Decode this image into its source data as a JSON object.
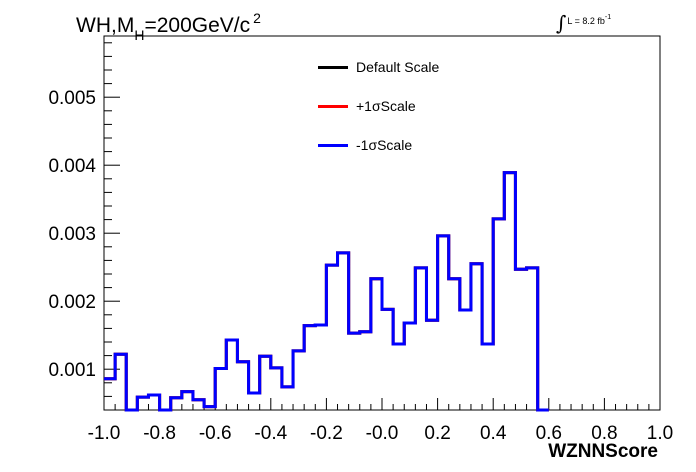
{
  "chart_data": {
    "type": "histogram",
    "title_parts": {
      "pre": "WH,M",
      "sub": "H",
      "post": "=200GeV/c",
      "sup": "2"
    },
    "lumi": {
      "text": "L = 8.2 fb",
      "sup": "-1"
    },
    "xlabel": "WZNNScore",
    "ylabel": "",
    "xlim": [
      -1.0,
      1.0
    ],
    "ylim": [
      0.0004,
      0.0059
    ],
    "xticks": [
      "-1.0",
      "-0.8",
      "-0.6",
      "-0.4",
      "-0.2",
      "-0.0",
      "0.2",
      "0.4",
      "0.6",
      "0.8",
      "1.0"
    ],
    "yticks": [
      "0.001",
      "0.002",
      "0.003",
      "0.004",
      "0.005"
    ],
    "bin_edges_start": -1.0,
    "bin_width": 0.04,
    "series": [
      {
        "name": "Default Scale",
        "color": "#000000",
        "values": [
          0.00086,
          0.00122,
          0.0004,
          0.00059,
          0.00062,
          0.0004,
          0.00058,
          0.00067,
          0.00055,
          0.00045,
          0.00101,
          0.00143,
          0.00111,
          0.00065,
          0.00119,
          0.00102,
          0.00074,
          0.00127,
          0.00164,
          0.00165,
          0.00253,
          0.00271,
          0.00153,
          0.00155,
          0.00233,
          0.00188,
          0.00137,
          0.00168,
          0.00249,
          0.00172,
          0.00296,
          0.00233,
          0.00187,
          0.00255,
          0.00137,
          0.00321,
          0.00389,
          0.00247,
          0.00249,
          0.0004
        ]
      },
      {
        "name": "+1σScale",
        "color": "#ff0000",
        "values": [
          0.00086,
          0.00122,
          0.0004,
          0.00059,
          0.00062,
          0.0004,
          0.00058,
          0.00067,
          0.00055,
          0.00045,
          0.00101,
          0.00143,
          0.00111,
          0.00065,
          0.00119,
          0.00102,
          0.00074,
          0.00127,
          0.00164,
          0.00165,
          0.00253,
          0.00271,
          0.00153,
          0.00155,
          0.00233,
          0.00188,
          0.00137,
          0.00168,
          0.00249,
          0.00172,
          0.00296,
          0.00233,
          0.00187,
          0.00255,
          0.00137,
          0.00321,
          0.00389,
          0.00247,
          0.00249,
          0.0004
        ]
      },
      {
        "name": "-1σScale",
        "color": "#0000ff",
        "values": [
          0.00086,
          0.00122,
          0.0004,
          0.00059,
          0.00062,
          0.0004,
          0.00058,
          0.00067,
          0.00055,
          0.00045,
          0.00101,
          0.00143,
          0.00111,
          0.00065,
          0.00119,
          0.00102,
          0.00074,
          0.00127,
          0.00164,
          0.00165,
          0.00253,
          0.00271,
          0.00153,
          0.00155,
          0.00233,
          0.00188,
          0.00137,
          0.00168,
          0.00249,
          0.00172,
          0.00296,
          0.00233,
          0.00187,
          0.00255,
          0.00137,
          0.00321,
          0.00389,
          0.00247,
          0.00249,
          0.0004
        ]
      }
    ],
    "grid": false,
    "legend_position": "top-center"
  }
}
